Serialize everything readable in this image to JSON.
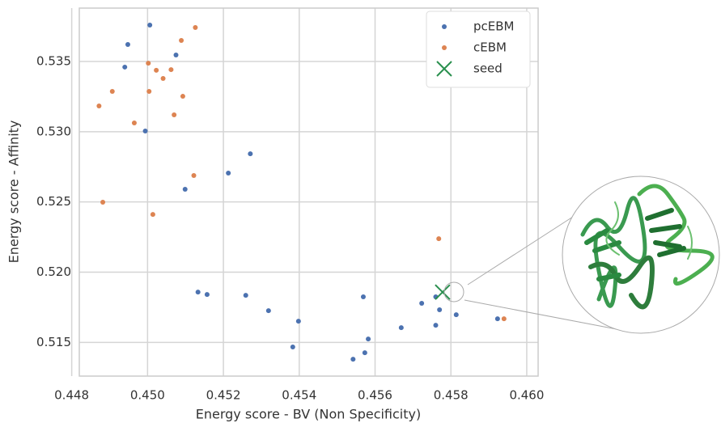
{
  "chart_data": {
    "type": "scatter",
    "x_label": "Energy score - BV (Non Specificity)",
    "y_label": "Energy score - Affinity",
    "xlim": [
      0.4482,
      0.4603
    ],
    "ylim": [
      0.5126,
      0.5388
    ],
    "xticks": [
      0.448,
      {
        "value": 0.45,
        "label": "0.450"
      },
      0.452,
      0.454,
      0.456,
      0.458,
      {
        "value": 0.46,
        "label": "0.460"
      }
    ],
    "yticks": [
      0.515,
      {
        "value": 0.52,
        "label": "0.520"
      },
      0.525,
      {
        "value": 0.53,
        "label": "0.530"
      },
      0.535
    ],
    "grid": true,
    "legend": "upper right",
    "series": [
      {
        "name": "pcEBM",
        "color": "#4c72b0",
        "marker": "dot",
        "x": [
          0.45006,
          0.44948,
          0.4494,
          0.45075,
          0.44994,
          0.45271,
          0.45213,
          0.45099,
          0.45133,
          0.45157,
          0.45259,
          0.45319,
          0.45398,
          0.45383,
          0.45542,
          0.45569,
          0.45582,
          0.45573,
          0.45669,
          0.45723,
          0.4576,
          0.4577,
          0.4576,
          0.45814,
          0.45923
        ],
        "values": [
          0.53759,
          0.53621,
          0.5346,
          0.53546,
          0.53005,
          0.52843,
          0.52705,
          0.5259,
          0.51858,
          0.51841,
          0.51835,
          0.51726,
          0.51651,
          0.51467,
          0.5138,
          0.51824,
          0.51524,
          0.51426,
          0.51605,
          0.51778,
          0.51824,
          0.51732,
          0.51622,
          0.51697,
          0.51668
        ]
      },
      {
        "name": "cEBM",
        "color": "#dd8452",
        "marker": "dot",
        "x": [
          0.45126,
          0.45089,
          0.45002,
          0.45023,
          0.45062,
          0.45041,
          0.44907,
          0.45004,
          0.44872,
          0.45093,
          0.4507,
          0.44965,
          0.45122,
          0.44882,
          0.45014,
          0.45768,
          0.4594
        ],
        "values": [
          0.53742,
          0.5365,
          0.53488,
          0.53437,
          0.53442,
          0.53379,
          0.53287,
          0.53287,
          0.53183,
          0.53252,
          0.5312,
          0.53062,
          0.52688,
          0.52498,
          0.52411,
          0.52238,
          0.51668
        ]
      },
      {
        "name": "seed",
        "color": "#2a8f4e",
        "marker": "x",
        "x": [
          0.45778
        ],
        "values": [
          0.51858
        ]
      }
    ]
  }
}
